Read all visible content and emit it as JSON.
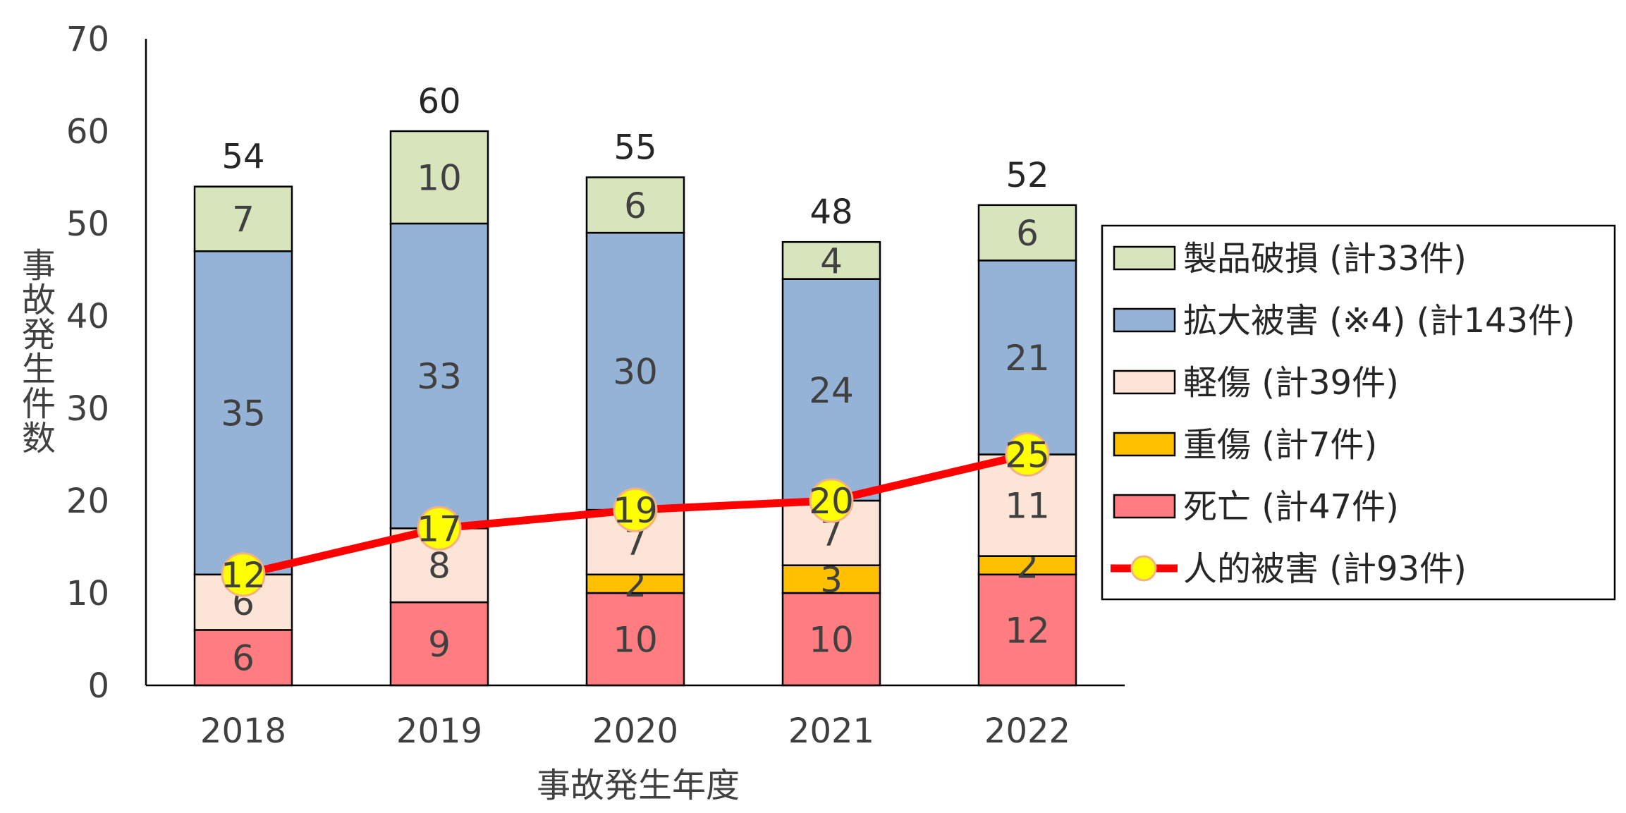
{
  "chart_data": {
    "type": "bar",
    "stacked": true,
    "categories": [
      "2018",
      "2019",
      "2020",
      "2021",
      "2022"
    ],
    "xlabel": "事故発生年度",
    "ylabel": "事故発生件数",
    "ylim": [
      0,
      70
    ],
    "yticks": [
      0,
      10,
      20,
      30,
      40,
      50,
      60,
      70
    ],
    "grid": false,
    "legend_position": "right",
    "series": [
      {
        "name": "死亡 (計47件)",
        "values": [
          6,
          9,
          10,
          10,
          12
        ],
        "color": "#FF7C80"
      },
      {
        "name": "重傷 (計7件)",
        "values": [
          0,
          0,
          2,
          3,
          2
        ],
        "color": "#FFC000"
      },
      {
        "name": "軽傷 (計39件)",
        "values": [
          6,
          8,
          7,
          7,
          11
        ],
        "color": "#FCE4D6"
      },
      {
        "name": "拡大被害 (※4) (計143件)",
        "values": [
          35,
          33,
          30,
          24,
          21
        ],
        "color": "#95B3D7"
      },
      {
        "name": "製品破損 (計33件)",
        "values": [
          7,
          10,
          6,
          4,
          6
        ],
        "color": "#D8E4BC"
      }
    ],
    "totals": [
      54,
      60,
      55,
      48,
      52
    ],
    "line_series": {
      "name": "人的被害 (計93件)",
      "values": [
        12,
        17,
        19,
        20,
        25
      ],
      "line_color": "#FF0000",
      "marker_color": "#FFFF00",
      "marker_edge_color": "#F4B183"
    },
    "legend_order": [
      "製品破損 (計33件)",
      "拡大被害 (※4) (計143件)",
      "軽傷 (計39件)",
      "重傷 (計7件)",
      "死亡 (計47件)",
      "人的被害 (計93件)"
    ]
  }
}
